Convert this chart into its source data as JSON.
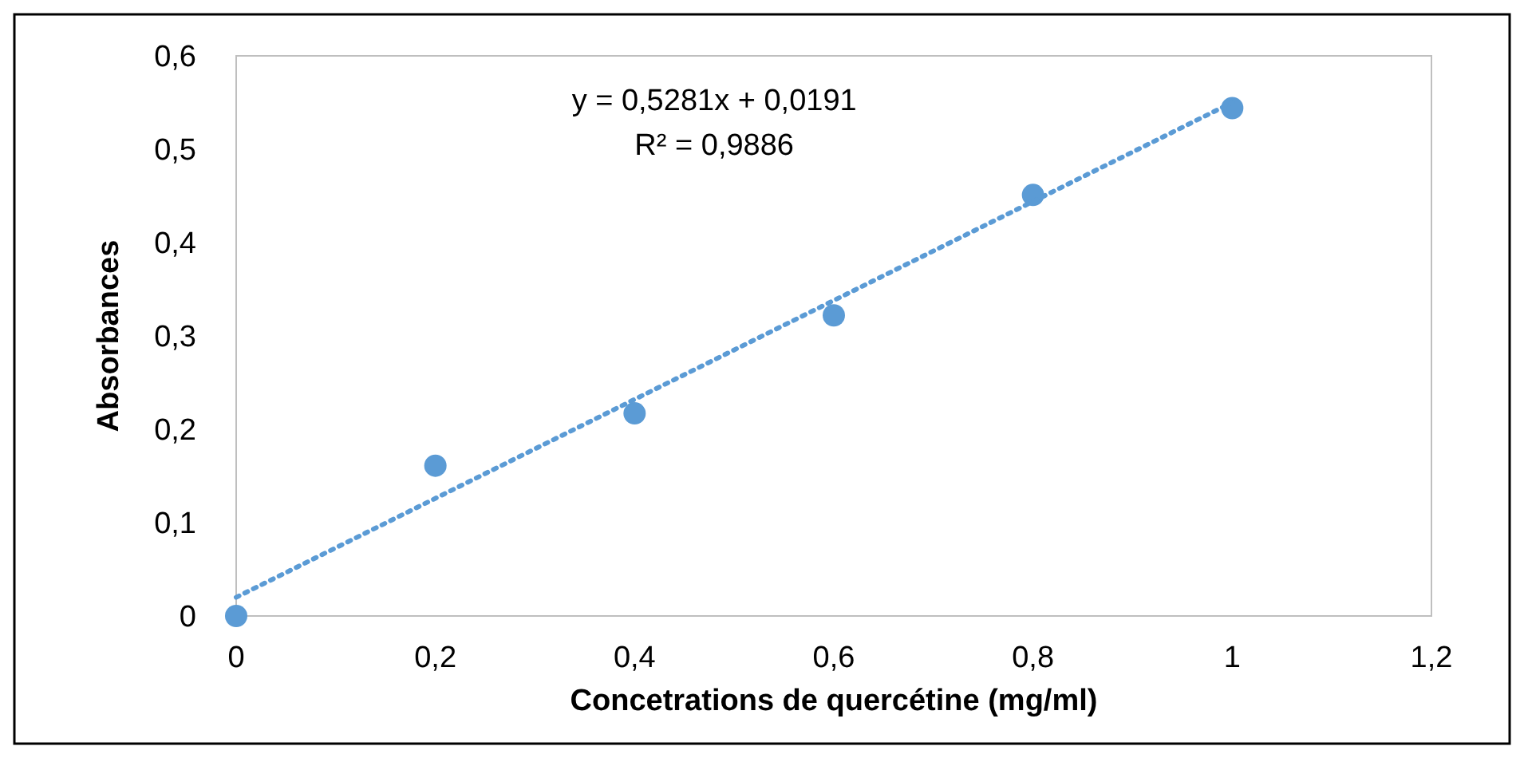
{
  "chart_data": {
    "type": "scatter",
    "xlabel": "Concetrations de quercétine (mg/ml)",
    "ylabel": "Absorbances",
    "xlim": [
      0,
      1.2
    ],
    "ylim": [
      0,
      0.6
    ],
    "xticks": [
      0,
      {
        "value": 0.2,
        "label": "0,2"
      },
      {
        "value": 0.4,
        "label": "0,4"
      },
      {
        "value": 0.6,
        "label": "0,6"
      },
      {
        "value": 0.8,
        "label": "0,8"
      },
      1,
      {
        "value": 1.2,
        "label": "1,2"
      }
    ],
    "yticks": [
      0,
      {
        "value": 0.1,
        "label": "0,1"
      },
      {
        "value": 0.2,
        "label": "0,2"
      },
      {
        "value": 0.3,
        "label": "0,3"
      },
      {
        "value": 0.4,
        "label": "0,4"
      },
      {
        "value": 0.5,
        "label": "0,5"
      },
      {
        "value": 0.6,
        "label": "0,6"
      }
    ],
    "grid": false,
    "marker": "circle",
    "series": [
      {
        "color": "#5b9bd5",
        "x": [
          0,
          0.2,
          0.4,
          0.6,
          0.8,
          1
        ],
        "values": [
          0,
          0.161,
          0.217,
          0.322,
          0.451,
          0.544
        ]
      },
      {
        "type": "line",
        "color": "#5b9bd5",
        "line_style": "dotted",
        "marker": "none",
        "x": [
          0,
          1
        ],
        "values": [
          0.02,
          0.55
        ]
      }
    ],
    "annotations": [
      "y = 0,5281x + 0,0191",
      "R² = 0,9886"
    ]
  }
}
